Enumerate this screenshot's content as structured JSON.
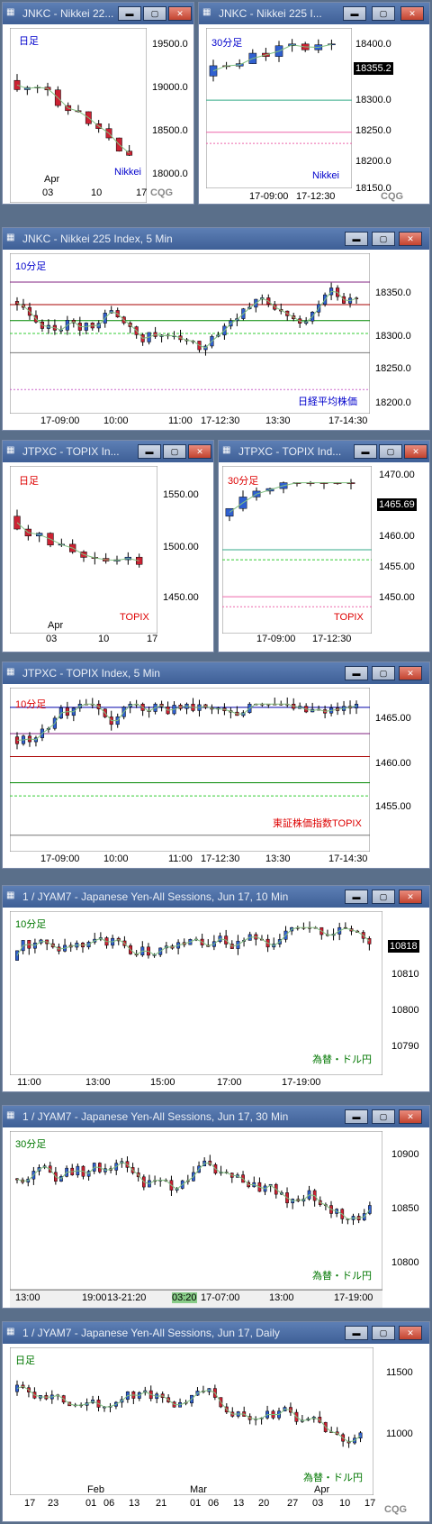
{
  "windows": [
    {
      "id": "w1",
      "title": "JNKC - Nikkei 22...",
      "label": "日足",
      "label_color": "#0000cc",
      "corner": "Nikkei",
      "corner_color": "#0000cc",
      "yticks": [
        "19500.0",
        "19000.0",
        "18500.0",
        "18000.0"
      ],
      "xticks": [
        "03",
        "10",
        "17"
      ],
      "month": "Apr",
      "brand": "CQG"
    },
    {
      "id": "w2",
      "title": "JNKC - Nikkei 225 I...",
      "label": "30分足",
      "label_color": "#0000cc",
      "corner": "Nikkei",
      "corner_color": "#0000cc",
      "yticks": [
        "18400.0",
        "18300.0",
        "18250.0",
        "18200.0",
        "18150.0"
      ],
      "price": "18355.2",
      "xticks": [
        "17-09:00",
        "17-12:30"
      ],
      "brand": "CQG"
    },
    {
      "id": "w3",
      "title": "JNKC - Nikkei 225 Index, 5 Min",
      "label": "10分足",
      "label_color": "#0000cc",
      "corner": "日経平均株価",
      "corner_color": "#0000cc",
      "yticks": [
        "18350.0",
        "18300.0",
        "18250.0",
        "18200.0"
      ],
      "xticks": [
        "17-09:00",
        "10:00",
        "11:00",
        "17-12:30",
        "13:30",
        "17-14:30"
      ]
    },
    {
      "id": "w4",
      "title": "JTPXC - TOPIX In...",
      "label": "日足",
      "label_color": "#dd0000",
      "corner": "TOPIX",
      "corner_color": "#dd0000",
      "yticks": [
        "1550.00",
        "1500.00",
        "1450.00"
      ],
      "xticks": [
        "03",
        "10",
        "17"
      ],
      "month": "Apr"
    },
    {
      "id": "w5",
      "title": "JTPXC - TOPIX Ind...",
      "label": "30分足",
      "label_color": "#dd0000",
      "corner": "TOPIX",
      "corner_color": "#dd0000",
      "yticks": [
        "1470.00",
        "1465.00",
        "1460.00",
        "1455.00",
        "1450.00"
      ],
      "price": "1465.69",
      "xticks": [
        "17-09:00",
        "17-12:30"
      ]
    },
    {
      "id": "w6",
      "title": "JTPXC - TOPIX Index, 5 Min",
      "label": "10分足",
      "label_color": "#dd0000",
      "corner": "東証株価指数TOPIX",
      "corner_color": "#dd0000",
      "yticks": [
        "1465.00",
        "1460.00",
        "1455.00"
      ],
      "xticks": [
        "17-09:00",
        "10:00",
        "11:00",
        "17-12:30",
        "13:30",
        "17-14:30"
      ]
    },
    {
      "id": "w7",
      "title": "1 / JYAM7 - Japanese Yen-All Sessions, Jun 17, 10 Min",
      "label": "10分足",
      "label_color": "#007700",
      "corner": "為替・ドル円",
      "corner_color": "#007700",
      "yticks": [
        "10818",
        "10810",
        "10800",
        "10790"
      ],
      "price": "10818",
      "xticks": [
        "11:00",
        "13:00",
        "15:00",
        "17:00",
        "17-19:00"
      ]
    },
    {
      "id": "w8",
      "title": "1 / JYAM7 - Japanese Yen-All Sessions, Jun 17, 30 Min",
      "label": "30分足",
      "label_color": "#007700",
      "corner": "為替・ドル円",
      "corner_color": "#007700",
      "yticks": [
        "10900",
        "10850",
        "10800"
      ],
      "xticks": [
        "13:00",
        "19:00",
        "13-21:20",
        "03:20",
        "17-07:00",
        "13:00",
        "17-19:00"
      ]
    },
    {
      "id": "w9",
      "title": "1 / JYAM7 - Japanese Yen-All Sessions, Jun 17, Daily",
      "label": "日足",
      "label_color": "#007700",
      "corner": "為替・ドル円",
      "corner_color": "#007700",
      "yticks": [
        "11500",
        "11000"
      ],
      "xticks": [
        "17",
        "23",
        "01",
        "06",
        "13",
        "21",
        "01",
        "06",
        "13",
        "20",
        "27",
        "03",
        "10",
        "17"
      ],
      "months": [
        "Feb",
        "Mar",
        "Apr"
      ],
      "brand": "CQG"
    }
  ],
  "buttons": {
    "min": "▬",
    "max": "▢",
    "close": "✕"
  },
  "colors": {
    "titlebar": "#4a6ea6",
    "up": "#3060d0",
    "down": "#cc2233",
    "ma_pink": "#e060a0",
    "ma_green": "#80c080",
    "band": "#ee77cc"
  }
}
